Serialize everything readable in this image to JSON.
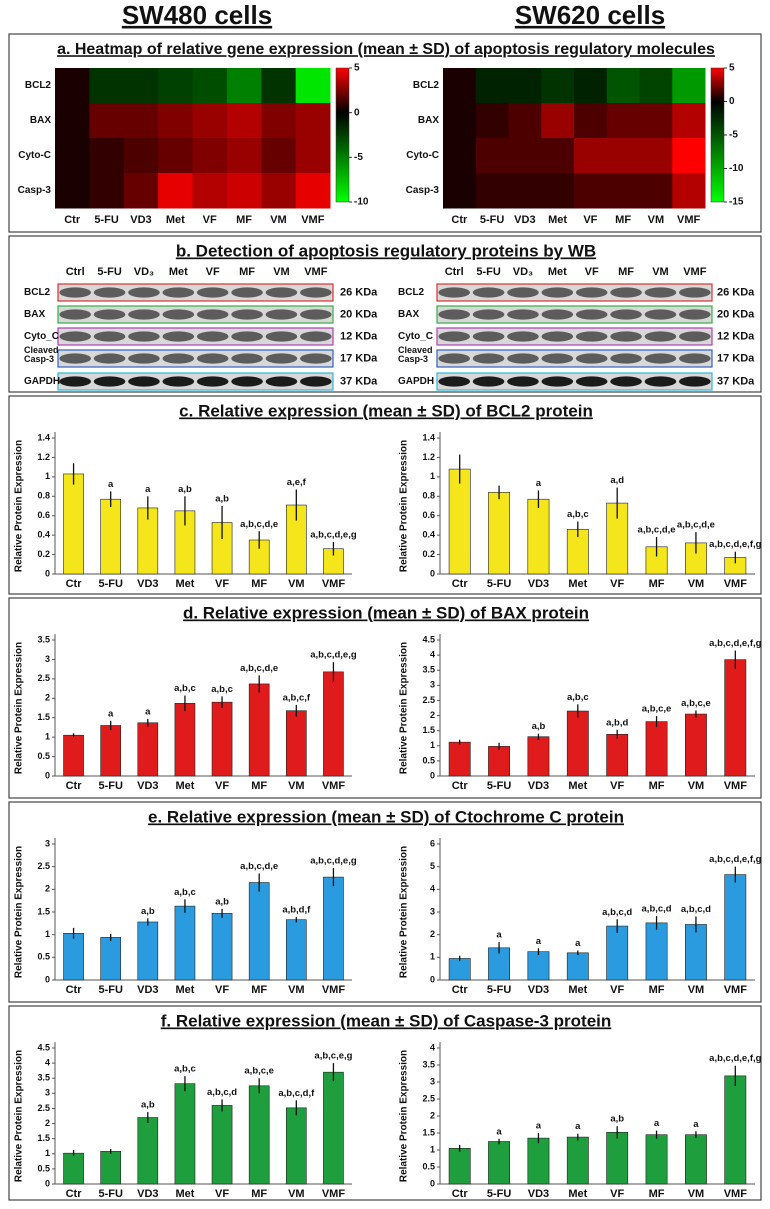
{
  "columns": [
    "SW480 cells",
    "SW620 cells"
  ],
  "panels": [
    "a. Heatmap of relative gene expression (mean ± SD) of apoptosis regulatory molecules",
    "b. Detection of apoptosis regulatory proteins by WB",
    "c. Relative expression (mean ± SD) of BCL2 protein",
    "d. Relative expression (mean ± SD) of BAX protein",
    "e. Relative expression (mean ± SD) of Ctochrome C protein",
    "f. Relative expression (mean ± SD) of Caspase-3 protein"
  ],
  "blots": [
    {
      "lanes": [
        "Ctrl",
        "5-FU",
        "VD₃",
        "Met",
        "VF",
        "MF",
        "VM",
        "VMF"
      ],
      "proteins": [
        "BCL2",
        "BAX",
        "Cyto_C",
        "Cleaved Casp-3",
        "GAPDH"
      ],
      "sizes": [
        "26 KDa",
        "20 KDa",
        "12 KDa",
        "17 KDa",
        "37 KDa"
      ]
    },
    {
      "lanes": [
        "Ctrl",
        "5-FU",
        "VD₃",
        "Met",
        "VF",
        "MF",
        "VM",
        "VMF"
      ],
      "proteins": [
        "BCL2",
        "BAX",
        "Cyto_C",
        "Cleaved Casp-3",
        "GAPDH"
      ],
      "sizes": [
        "26 KDa",
        "20 KDa",
        "12 KDa",
        "17 KDa",
        "37 KDa"
      ]
    }
  ],
  "chart_data": [
    {
      "type": "heatmap",
      "x": [
        "Ctr",
        "5-FU",
        "VD3",
        "Met",
        "VF",
        "MF",
        "VM",
        "VMF"
      ],
      "y": [
        "BCL2",
        "BAX",
        "Cyto-C",
        "Casp-3"
      ],
      "values": [
        [
          0.5,
          -2,
          -2,
          -2.5,
          -3,
          -5,
          -2,
          -9
        ],
        [
          0.5,
          2,
          2,
          2.5,
          3,
          3.5,
          2.5,
          3
        ],
        [
          0.5,
          1,
          1.5,
          2,
          2.5,
          3,
          2,
          3
        ],
        [
          0.5,
          1,
          2,
          4.5,
          3.5,
          4,
          3,
          4.5
        ]
      ],
      "zlim": [
        -10,
        5
      ],
      "zticks": [
        5,
        0,
        -5,
        -10
      ],
      "colorscale": [
        "#00ff00",
        "#000000",
        "#ff0000"
      ]
    },
    {
      "type": "heatmap",
      "x": [
        "Ctr",
        "5-FU",
        "VD3",
        "Met",
        "VF",
        "MF",
        "VM",
        "VMF"
      ],
      "y": [
        "BCL2",
        "BAX",
        "Cyto-C",
        "Casp-3"
      ],
      "values": [
        [
          0.5,
          -2,
          -2,
          -3,
          -2,
          -5,
          -4,
          -9
        ],
        [
          0.5,
          1,
          1.5,
          3,
          1.5,
          2,
          2,
          3.5
        ],
        [
          0.5,
          1.5,
          1.5,
          1.5,
          3,
          3,
          3,
          5
        ],
        [
          0.5,
          1,
          1,
          1,
          1.5,
          1.5,
          1.5,
          3.5
        ]
      ],
      "zlim": [
        -15,
        5
      ],
      "zticks": [
        5,
        0,
        -5,
        -10,
        -15
      ],
      "colorscale": [
        "#00ff00",
        "#000000",
        "#ff0000"
      ]
    },
    {
      "type": "bar",
      "ylabel": "Relative Protein Expression",
      "categories": [
        "Ctr",
        "5-FU",
        "VD3",
        "Met",
        "VF",
        "MF",
        "VM",
        "VMF"
      ],
      "values": [
        1.03,
        0.77,
        0.68,
        0.65,
        0.53,
        0.35,
        0.71,
        0.26
      ],
      "errors": [
        0.11,
        0.08,
        0.12,
        0.15,
        0.17,
        0.09,
        0.16,
        0.07
      ],
      "annotations": [
        null,
        "a",
        "a",
        "a,b",
        "a,b",
        "a,b,c,d,e",
        "a,e,f",
        "a,b,c,d,e,g"
      ],
      "color": "#f5e51b",
      "ylim": [
        0,
        1.4
      ],
      "yticks": [
        0,
        0.2,
        0.4,
        0.6,
        0.8,
        1,
        1.2,
        1.4
      ]
    },
    {
      "type": "bar",
      "ylabel": "Relative Protein Expression",
      "categories": [
        "Ctr",
        "5-FU",
        "VD3",
        "Met",
        "VF",
        "MF",
        "VM",
        "VMF"
      ],
      "values": [
        1.08,
        0.84,
        0.77,
        0.46,
        0.73,
        0.28,
        0.32,
        0.17
      ],
      "errors": [
        0.15,
        0.07,
        0.09,
        0.08,
        0.16,
        0.1,
        0.11,
        0.06
      ],
      "annotations": [
        null,
        null,
        "a",
        "a,b,c",
        "a,d",
        "a,b,c,d,e",
        "a,b,c,d,e",
        "a,b,c,d,e,f,g"
      ],
      "color": "#f5e51b",
      "ylim": [
        0,
        1.4
      ],
      "yticks": [
        0,
        0.2,
        0.4,
        0.6,
        0.8,
        1,
        1.2,
        1.4
      ]
    },
    {
      "type": "bar",
      "ylabel": "Relative Protein Expression",
      "categories": [
        "Ctr",
        "5-FU",
        "VD3",
        "Met",
        "VF",
        "MF",
        "VM",
        "VMF"
      ],
      "values": [
        1.05,
        1.3,
        1.37,
        1.87,
        1.9,
        2.37,
        1.68,
        2.68
      ],
      "errors": [
        0.05,
        0.12,
        0.1,
        0.2,
        0.15,
        0.22,
        0.15,
        0.25
      ],
      "annotations": [
        null,
        "a",
        "a",
        "a,b,c",
        "a,b,c",
        "a,b,c,d,e",
        "a,b,c,f",
        "a,b,c,d,e,g"
      ],
      "color": "#e01b1b",
      "ylim": [
        0,
        3.5
      ],
      "yticks": [
        0,
        0.5,
        1,
        1.5,
        2,
        2.5,
        3,
        3.5
      ]
    },
    {
      "type": "bar",
      "ylabel": "Relative Protein Expression",
      "categories": [
        "Ctr",
        "5-FU",
        "VD3",
        "Met",
        "VF",
        "MF",
        "VM",
        "VMF"
      ],
      "values": [
        1.12,
        0.98,
        1.3,
        2.15,
        1.38,
        1.8,
        2.05,
        3.85
      ],
      "errors": [
        0.08,
        0.12,
        0.1,
        0.22,
        0.15,
        0.18,
        0.12,
        0.3
      ],
      "annotations": [
        null,
        null,
        "a,b",
        "a,b,c",
        "a,b,d",
        "a,b,c,e",
        "a,b,c,e",
        "a,b,c,d,e,f,g"
      ],
      "color": "#e01b1b",
      "ylim": [
        0,
        4.5
      ],
      "yticks": [
        0,
        0.5,
        1,
        1.5,
        2,
        2.5,
        3,
        3.5,
        4,
        4.5
      ]
    },
    {
      "type": "bar",
      "ylabel": "Relative Protein Expression",
      "categories": [
        "Ctr",
        "5-FU",
        "VD3",
        "Met",
        "VF",
        "MF",
        "VM",
        "VMF"
      ],
      "values": [
        1.03,
        0.94,
        1.28,
        1.63,
        1.47,
        2.15,
        1.33,
        2.27
      ],
      "errors": [
        0.12,
        0.08,
        0.08,
        0.15,
        0.1,
        0.2,
        0.06,
        0.2
      ],
      "annotations": [
        null,
        null,
        "a,b",
        "a,b,c",
        "a,b",
        "a,b,c,d,e",
        "a,b,d,f",
        "a,b,c,d,e,g"
      ],
      "color": "#2b9be0",
      "ylim": [
        0,
        3
      ],
      "yticks": [
        0,
        0.5,
        1,
        1.5,
        2,
        2.5,
        3
      ]
    },
    {
      "type": "bar",
      "ylabel": "Relative Protein Expression",
      "categories": [
        "Ctr",
        "5-FU",
        "VD3",
        "Met",
        "VF",
        "MF",
        "VM",
        "VMF"
      ],
      "values": [
        0.95,
        1.42,
        1.25,
        1.2,
        2.38,
        2.52,
        2.45,
        4.65
      ],
      "errors": [
        0.12,
        0.25,
        0.15,
        0.1,
        0.3,
        0.3,
        0.35,
        0.35
      ],
      "annotations": [
        null,
        "a",
        "a",
        "a",
        "a,b,c,d",
        "a,b,c,d",
        "a,b,c,d",
        "a,b,c,d,e,f,g"
      ],
      "color": "#2b9be0",
      "ylim": [
        0,
        6
      ],
      "yticks": [
        0,
        1,
        2,
        3,
        4,
        5,
        6
      ]
    },
    {
      "type": "bar",
      "ylabel": "Relative Protein Expression",
      "categories": [
        "Ctr",
        "5-FU",
        "VD3",
        "Met",
        "VF",
        "MF",
        "VM",
        "VMF"
      ],
      "values": [
        1.02,
        1.08,
        2.2,
        3.32,
        2.6,
        3.25,
        2.52,
        3.7
      ],
      "errors": [
        0.1,
        0.08,
        0.18,
        0.25,
        0.2,
        0.25,
        0.25,
        0.3
      ],
      "annotations": [
        null,
        null,
        "a,b",
        "a,b,c",
        "a,b,c,d",
        "a,b,c,e",
        "a,b,c,d,f",
        "a,b,c,e,g"
      ],
      "color": "#1f9e3e",
      "ylim": [
        0,
        4.5
      ],
      "yticks": [
        0,
        0.5,
        1,
        1.5,
        2,
        2.5,
        3,
        3.5,
        4,
        4.5
      ]
    },
    {
      "type": "bar",
      "ylabel": "Relative Protein Expression",
      "categories": [
        "Ctr",
        "5-FU",
        "VD3",
        "Met",
        "VF",
        "MF",
        "VM",
        "VMF"
      ],
      "values": [
        1.05,
        1.25,
        1.35,
        1.38,
        1.52,
        1.45,
        1.45,
        3.18
      ],
      "errors": [
        0.1,
        0.08,
        0.15,
        0.1,
        0.18,
        0.12,
        0.1,
        0.3
      ],
      "annotations": [
        null,
        "a",
        "a",
        "a",
        "a,b",
        "a",
        "a",
        "a,b,c,d,e,f,g"
      ],
      "color": "#1f9e3e",
      "ylim": [
        0,
        4
      ],
      "yticks": [
        0,
        0.5,
        1,
        1.5,
        2,
        2.5,
        3,
        3.5,
        4
      ]
    }
  ]
}
